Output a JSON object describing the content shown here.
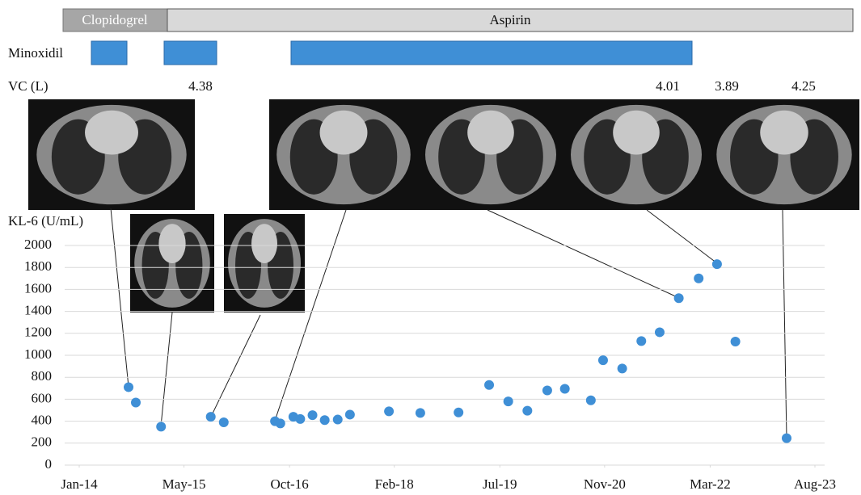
{
  "chart_data": {
    "type": "scatter",
    "treatments": [
      "Clopidogrel",
      "Aspirin"
    ],
    "minoxidil_label": "Minoxidil",
    "vc_label": "VC (L)",
    "vc_values": [
      4.38,
      4.01,
      3.89,
      4.25
    ],
    "y_label": "KL-6 (U/mL)",
    "color": "#3f8fd6",
    "x": [
      2014.645,
      2014.74,
      2015.07,
      2015.72,
      2015.89,
      2016.56,
      2016.63,
      2016.8,
      2016.89,
      2017.05,
      2017.21,
      2017.38,
      2017.54,
      2018.05,
      2018.46,
      2018.96,
      2019.36,
      2019.61,
      2019.86,
      2020.12,
      2020.35,
      2020.69,
      2020.85,
      2021.1,
      2021.35,
      2021.59,
      2021.84,
      2022.1,
      2022.34,
      2022.58,
      2023.25
    ],
    "values": [
      710,
      570,
      350,
      440,
      390,
      400,
      380,
      440,
      420,
      455,
      410,
      415,
      460,
      490,
      475,
      480,
      730,
      580,
      495,
      680,
      695,
      590,
      955,
      880,
      1130,
      1210,
      1520,
      1700,
      1830,
      1125,
      245
    ],
    "xlim": [
      2014.0,
      2023.62
    ],
    "xticks": [
      {
        "value": 2014.0,
        "label": "Jan-14"
      },
      {
        "value": 2015.37,
        "label": "May-15"
      },
      {
        "value": 2016.75,
        "label": "Oct-16"
      },
      {
        "value": 2018.12,
        "label": "Feb-18"
      },
      {
        "value": 2019.5,
        "label": "Jul-19"
      },
      {
        "value": 2020.87,
        "label": "Nov-20"
      },
      {
        "value": 2022.25,
        "label": "Mar-22"
      },
      {
        "value": 2023.62,
        "label": "Aug-23"
      }
    ],
    "ylim": [
      0,
      2000
    ],
    "yticks": [
      0,
      200,
      400,
      600,
      800,
      1000,
      1200,
      1400,
      1600,
      1800,
      2000
    ],
    "grid": true
  }
}
